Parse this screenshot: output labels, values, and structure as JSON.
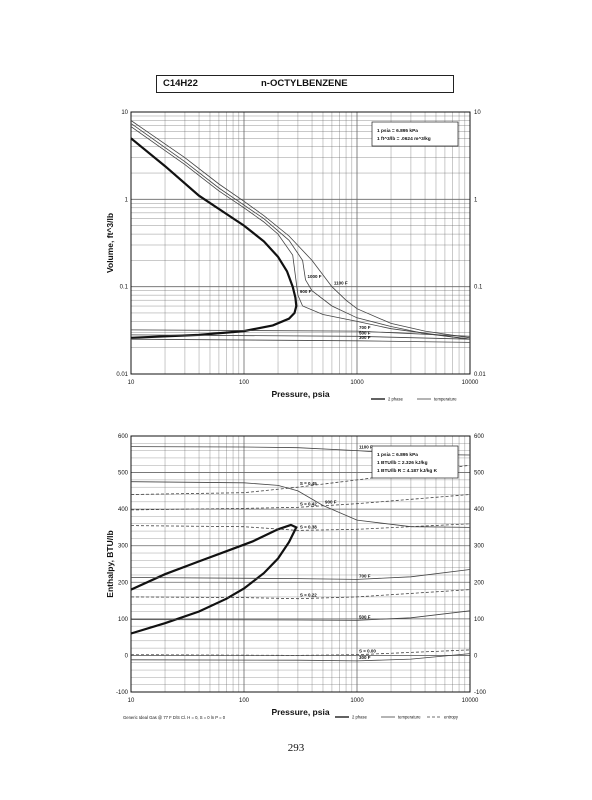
{
  "header": {
    "formula": "C14H22",
    "compound": "n-OCTYLBENZENE"
  },
  "page_number": "293",
  "chart_data": [
    {
      "type": "line",
      "title": "",
      "xlabel": "Pressure,  psia",
      "ylabel": "Volume, ft^3/lb",
      "xscale": "log",
      "yscale": "log",
      "xlim": [
        10,
        10000
      ],
      "ylim": [
        0.01,
        10
      ],
      "x_ticks": [
        "10",
        "100",
        "1000",
        "10000"
      ],
      "y_ticks": [
        "0.01",
        "0.1",
        "1",
        "10"
      ],
      "grid": true,
      "conversion_box": [
        "1 psia  =  6.895 kPa",
        "1 ft^3/lb  =  .0624 m^3/kg"
      ],
      "legend": [
        "2 phase",
        "temperature"
      ],
      "legend_placement": "bottom-right",
      "series": [
        {
          "label": "",
          "kind": "2-phase",
          "points": [
            [
              10,
              5.0
            ],
            [
              20,
              2.4
            ],
            [
              40,
              1.1
            ],
            [
              70,
              0.68
            ],
            [
              100,
              0.5
            ],
            [
              150,
              0.33
            ],
            [
              200,
              0.22
            ],
            [
              240,
              0.15
            ],
            [
              270,
              0.1
            ],
            [
              285,
              0.075
            ],
            [
              290,
              0.06
            ],
            [
              280,
              0.05
            ],
            [
              250,
              0.043
            ],
            [
              180,
              0.036
            ],
            [
              100,
              0.031
            ],
            [
              40,
              0.028
            ],
            [
              10,
              0.026
            ]
          ]
        },
        {
          "label": "1100 F",
          "kind": "temperature",
          "points": [
            [
              10,
              8.0
            ],
            [
              30,
              3.0
            ],
            [
              60,
              1.5
            ],
            [
              100,
              0.95
            ],
            [
              150,
              0.65
            ],
            [
              250,
              0.38
            ],
            [
              400,
              0.2
            ],
            [
              600,
              0.1
            ],
            [
              800,
              0.07
            ],
            [
              1000,
              0.056
            ],
            [
              2000,
              0.038
            ],
            [
              4000,
              0.031
            ],
            [
              10000,
              0.026
            ]
          ]
        },
        {
          "label": "1000 F",
          "kind": "temperature",
          "points": [
            [
              10,
              7.4
            ],
            [
              30,
              2.7
            ],
            [
              60,
              1.35
            ],
            [
              100,
              0.86
            ],
            [
              150,
              0.6
            ],
            [
              250,
              0.34
            ],
            [
              330,
              0.2
            ],
            [
              350,
              0.12
            ],
            [
              400,
              0.09
            ],
            [
              600,
              0.06
            ],
            [
              1000,
              0.044
            ],
            [
              2000,
              0.035
            ],
            [
              4000,
              0.029
            ],
            [
              10000,
              0.025
            ]
          ]
        },
        {
          "label": "900 F",
          "kind": "temperature",
          "points": [
            [
              10,
              6.8
            ],
            [
              30,
              2.5
            ],
            [
              60,
              1.25
            ],
            [
              100,
              0.8
            ],
            [
              150,
              0.55
            ],
            [
              200,
              0.4
            ],
            [
              270,
              0.23
            ],
            [
              300,
              0.08
            ],
            [
              330,
              0.06
            ],
            [
              500,
              0.048
            ],
            [
              1000,
              0.04
            ],
            [
              2000,
              0.033
            ],
            [
              10000,
              0.025
            ]
          ]
        },
        {
          "label": "700 F",
          "kind": "temperature",
          "points": [
            [
              10,
              0.032
            ],
            [
              1000,
              0.031
            ],
            [
              10000,
              0.027
            ]
          ]
        },
        {
          "label": "500 F",
          "kind": "temperature",
          "points": [
            [
              10,
              0.028
            ],
            [
              1000,
              0.027
            ],
            [
              10000,
              0.025
            ]
          ]
        },
        {
          "label": "300 F",
          "kind": "temperature",
          "points": [
            [
              10,
              0.025
            ],
            [
              1000,
              0.024
            ],
            [
              10000,
              0.023
            ]
          ]
        }
      ]
    },
    {
      "type": "line",
      "title": "",
      "xlabel": "Pressure,  psia",
      "ylabel": "Enthalpy, BTU/lb",
      "xscale": "log",
      "xlim": [
        10,
        10000
      ],
      "ylim": [
        -100,
        600
      ],
      "x_ticks": [
        "10",
        "100",
        "1000",
        "10000"
      ],
      "y_ticks": [
        "-100",
        "0",
        "100",
        "200",
        "300",
        "400",
        "500",
        "600"
      ],
      "grid": true,
      "conversion_box": [
        "1 psia  =  6.895 kPa",
        "1 BTU/lb  =  2.326 kJ/kg",
        "1 BTU/lb R  =  4.187 kJ/kg K"
      ],
      "legend": [
        "2 phase",
        "temperature",
        "entropy"
      ],
      "legend_placement": "bottom-right",
      "footnote": "Generic Ideal Gas @ 77 F D/S Cl.  H = 0,  S = 0 ln P = 0",
      "series": [
        {
          "label": "",
          "kind": "2-phase",
          "points": [
            [
              10,
              60
            ],
            [
              20,
              88
            ],
            [
              40,
              120
            ],
            [
              70,
              155
            ],
            [
              100,
              183
            ],
            [
              150,
              225
            ],
            [
              200,
              265
            ],
            [
              250,
              310
            ],
            [
              290,
              350
            ],
            [
              260,
              357
            ],
            [
              200,
              345
            ],
            [
              120,
              312
            ],
            [
              70,
              285
            ],
            [
              40,
              257
            ],
            [
              20,
              222
            ],
            [
              10,
              180
            ]
          ]
        },
        {
          "label": "1100 F",
          "kind": "temperature",
          "points": [
            [
              10,
              571
            ],
            [
              100,
              570
            ],
            [
              300,
              568
            ],
            [
              1000,
              560
            ],
            [
              3000,
              550
            ],
            [
              10000,
              548
            ]
          ]
        },
        {
          "label": "900 F",
          "kind": "temperature",
          "points": [
            [
              10,
              475
            ],
            [
              100,
              472
            ],
            [
              200,
              465
            ],
            [
              300,
              450
            ],
            [
              500,
              410
            ],
            [
              1000,
              370
            ],
            [
              3000,
              352
            ],
            [
              10000,
              350
            ]
          ]
        },
        {
          "label": "700 F",
          "kind": "temperature",
          "points": [
            [
              10,
              213
            ],
            [
              300,
              210
            ],
            [
              1000,
              208
            ],
            [
              3000,
              215
            ],
            [
              10000,
              235
            ]
          ]
        },
        {
          "label": "500 F",
          "kind": "temperature",
          "points": [
            [
              10,
              98
            ],
            [
              300,
              97
            ],
            [
              1000,
              96
            ],
            [
              3000,
              103
            ],
            [
              10000,
              122
            ]
          ]
        },
        {
          "label": "300 F",
          "kind": "temperature",
          "points": [
            [
              10,
              -12
            ],
            [
              300,
              -13
            ],
            [
              1000,
              -15
            ],
            [
              3000,
              -10
            ],
            [
              10000,
              5
            ]
          ]
        },
        {
          "label": "S = 0.45",
          "kind": "entropy",
          "points": [
            [
              10,
              440
            ],
            [
              100,
              445
            ],
            [
              300,
              460
            ],
            [
              1000,
              480
            ],
            [
              10000,
              520
            ]
          ]
        },
        {
          "label": "S = 0.42",
          "kind": "entropy",
          "points": [
            [
              10,
              398
            ],
            [
              100,
              402
            ],
            [
              300,
              405
            ],
            [
              1000,
              415
            ],
            [
              10000,
              440
            ]
          ]
        },
        {
          "label": "S = 0.38",
          "kind": "entropy",
          "points": [
            [
              10,
              355
            ],
            [
              100,
              352
            ],
            [
              300,
              342
            ],
            [
              1000,
              345
            ],
            [
              10000,
              360
            ]
          ]
        },
        {
          "label": "S = 0.22",
          "kind": "entropy",
          "points": [
            [
              10,
              160
            ],
            [
              100,
              158
            ],
            [
              300,
              155
            ],
            [
              1000,
              160
            ],
            [
              10000,
              180
            ]
          ]
        },
        {
          "label": "S = 0.00",
          "kind": "entropy",
          "points": [
            [
              10,
              2
            ],
            [
              300,
              0
            ],
            [
              1000,
              2
            ],
            [
              10000,
              15
            ]
          ]
        }
      ]
    }
  ]
}
